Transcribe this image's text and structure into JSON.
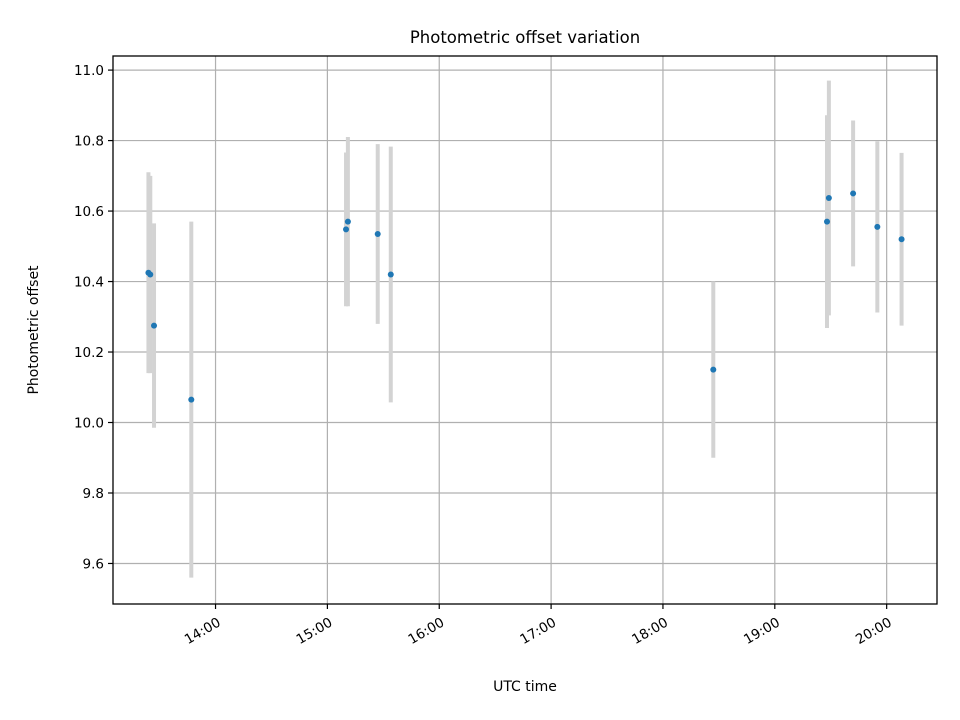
{
  "chart_data": {
    "type": "scatter",
    "title": "Photometric offset variation",
    "xlabel": "UTC time",
    "ylabel": "Photometric offset",
    "grid": true,
    "xlim": [
      "13:05",
      "20:27"
    ],
    "ylim": [
      9.485,
      11.04
    ],
    "x_ticks": [
      "14:00",
      "15:00",
      "16:00",
      "17:00",
      "18:00",
      "19:00",
      "20:00"
    ],
    "y_ticks": [
      "9.6",
      "9.8",
      "10.0",
      "10.2",
      "10.4",
      "10.6",
      "10.8",
      "11.0"
    ],
    "colors": {
      "point": "#1f77b4",
      "errorbar": "#d3d3d3",
      "grid": "#b0b0b0"
    },
    "points": [
      {
        "x": "13:24",
        "y": 10.425,
        "err": 0.285
      },
      {
        "x": "13:25",
        "y": 10.42,
        "err": 0.28
      },
      {
        "x": "13:27",
        "y": 10.275,
        "err": 0.29
      },
      {
        "x": "13:47",
        "y": 10.065,
        "err": 0.505
      },
      {
        "x": "15:10",
        "y": 10.548,
        "err": 0.218
      },
      {
        "x": "15:11",
        "y": 10.57,
        "err": 0.24
      },
      {
        "x": "15:27",
        "y": 10.535,
        "err": 0.255
      },
      {
        "x": "15:34",
        "y": 10.42,
        "err": 0.363
      },
      {
        "x": "18:27",
        "y": 10.15,
        "err": 0.25
      },
      {
        "x": "19:28",
        "y": 10.57,
        "err": 0.302
      },
      {
        "x": "19:29",
        "y": 10.637,
        "err": 0.333
      },
      {
        "x": "19:42",
        "y": 10.65,
        "err": 0.207
      },
      {
        "x": "19:55",
        "y": 10.555,
        "err": 0.243
      },
      {
        "x": "20:08",
        "y": 10.52,
        "err": 0.245
      }
    ]
  }
}
